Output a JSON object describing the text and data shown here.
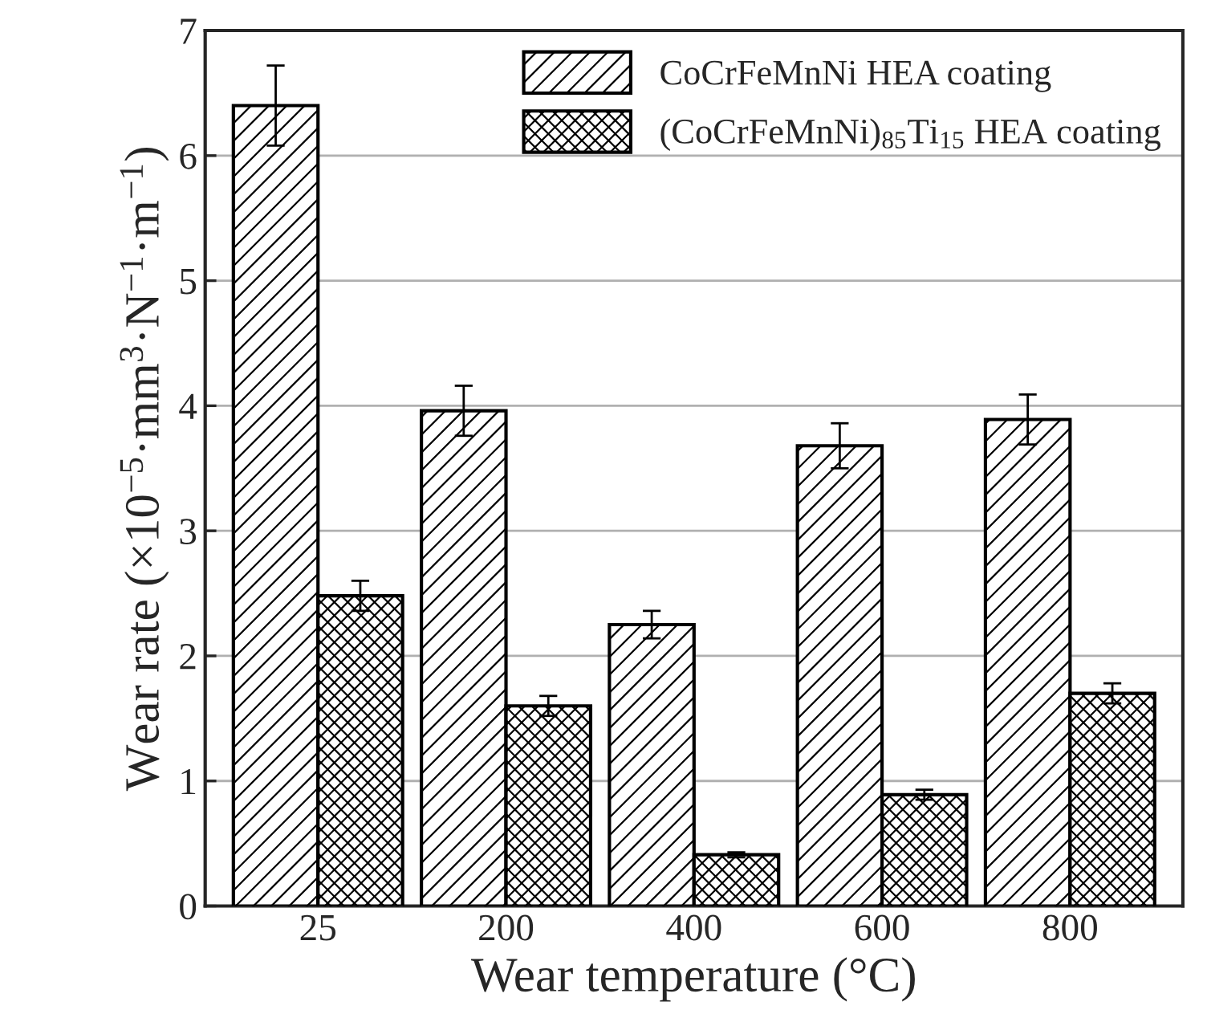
{
  "chart_data": {
    "type": "bar",
    "xlabel": "Wear temperature (°C)",
    "ylabel": "Wear rate (×10$^{−5}$·mm$^{3}$·N$^{−1}$·m$^{−1}$)",
    "categories": [
      "25",
      "200",
      "400",
      "600",
      "800"
    ],
    "series": [
      {
        "name": "CoCrFeMnNi HEA coating",
        "color": "#000000",
        "values": [
          6.4,
          3.96,
          2.25,
          3.68,
          3.89
        ],
        "errors": [
          0.32,
          0.2,
          0.11,
          0.18,
          0.2
        ]
      },
      {
        "name": "(CoCrFeMnNi)$_{85}$Ti$_{15}$ HEA coating",
        "color": "#000000",
        "values": [
          2.48,
          1.6,
          0.41,
          0.89,
          1.7
        ],
        "errors": [
          0.12,
          0.08,
          0.02,
          0.04,
          0.08
        ]
      }
    ],
    "ylim": [
      0,
      7
    ],
    "yticks": [
      0,
      1,
      2,
      3,
      4,
      5,
      6,
      7
    ],
    "grid": "y",
    "legend": "top right"
  }
}
